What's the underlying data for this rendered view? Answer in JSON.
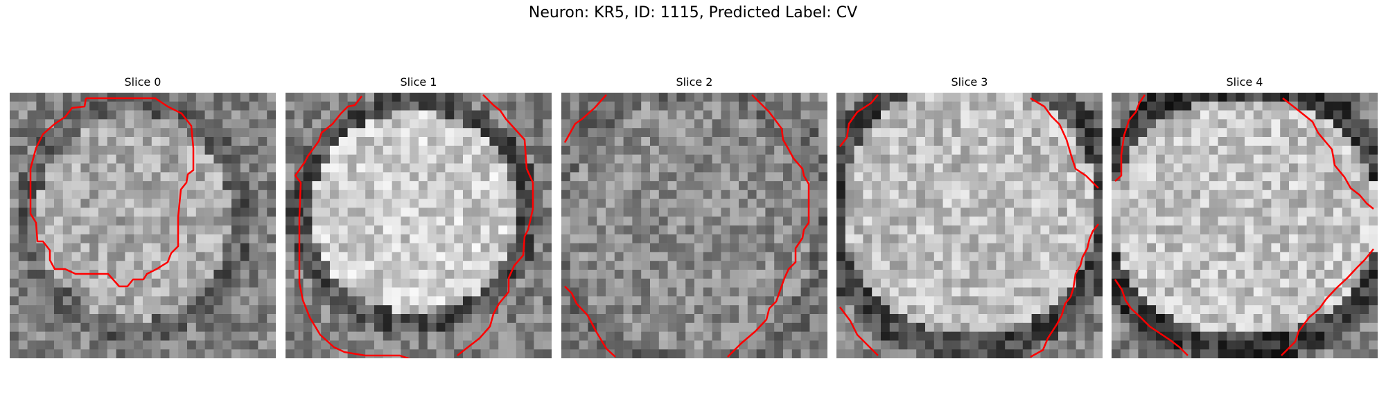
{
  "figure": {
    "title": "Neuron: KR5, ID: 1115, Predicted Label: CV"
  },
  "panels": [
    {
      "title": "Slice 0"
    },
    {
      "title": "Slice 1"
    },
    {
      "title": "Slice 2"
    },
    {
      "title": "Slice 3"
    },
    {
      "title": "Slice 4"
    }
  ],
  "style": {
    "contour_color": "#ff0000",
    "colormap": "grayscale"
  }
}
